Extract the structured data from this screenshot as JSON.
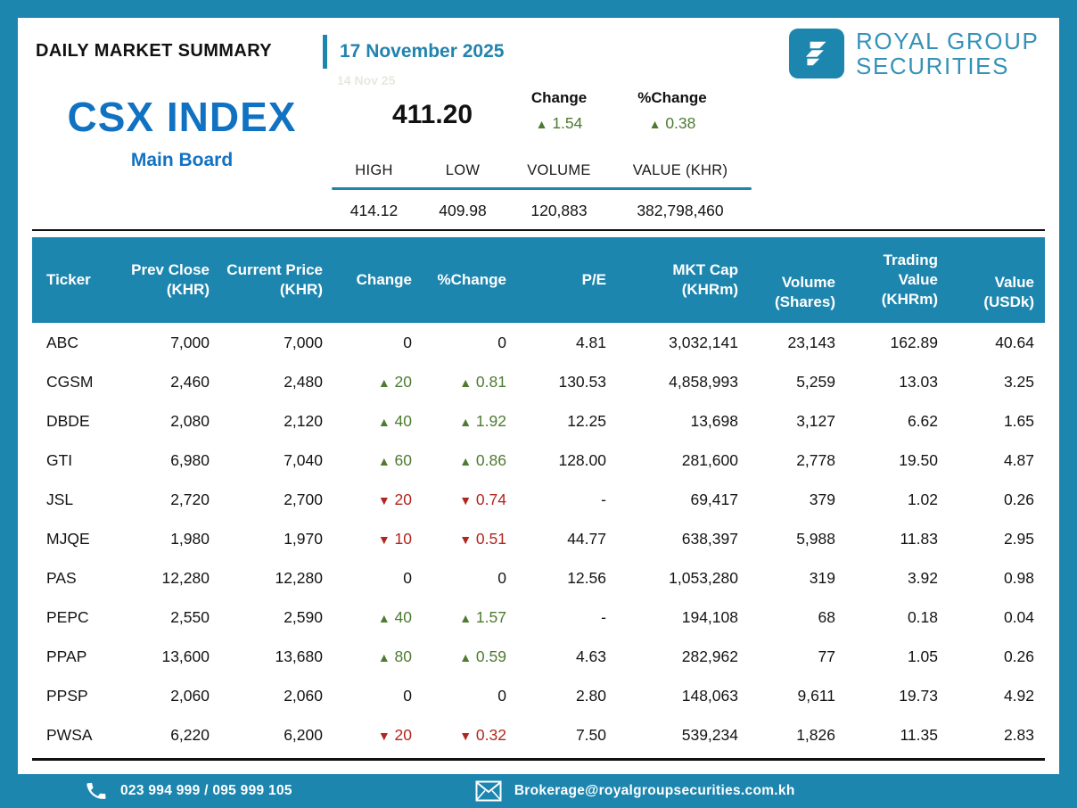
{
  "colors": {
    "teal": "#1d86af",
    "blue": "#1272c2",
    "date_blue": "#2283ae",
    "green": "#4e7a31",
    "red": "#b3241e"
  },
  "header": {
    "title": "DAILY MARKET SUMMARY",
    "date": "17 November 2025",
    "prior_date_watermark": "14 Nov 25"
  },
  "brand": {
    "line1": "ROYAL GROUP",
    "line2": "SECURITIES",
    "logo_icon": "royal-group-monogram"
  },
  "index": {
    "name": "CSX INDEX",
    "board": "Main Board",
    "value": "411.20",
    "change": {
      "label": "Change",
      "value": "1.54",
      "dir": "up"
    },
    "pct_change": {
      "label": "%Change",
      "value": "0.38",
      "dir": "up"
    },
    "stats": {
      "labels": [
        "HIGH",
        "LOW",
        "VOLUME",
        "VALUE (KHR)"
      ],
      "values": [
        "414.12",
        "409.98",
        "120,883",
        "382,798,460"
      ]
    }
  },
  "icons": {
    "up": "▲",
    "down": "▼"
  },
  "table": {
    "columns": [
      {
        "key": "ticker",
        "lines": [
          "Ticker"
        ],
        "align": "left"
      },
      {
        "key": "prev_close",
        "lines": [
          "Prev Close",
          "(KHR)"
        ],
        "align": "right"
      },
      {
        "key": "current_price",
        "lines": [
          "Current Price",
          "(KHR)"
        ],
        "align": "right"
      },
      {
        "key": "change",
        "lines": [
          "Change"
        ],
        "align": "right"
      },
      {
        "key": "pct_change",
        "lines": [
          "%Change"
        ],
        "align": "right"
      },
      {
        "key": "pe",
        "lines": [
          "P/E"
        ],
        "align": "right"
      },
      {
        "key": "mkt_cap",
        "lines": [
          "MKT Cap",
          "(KHRm)"
        ],
        "align": "right"
      },
      {
        "key": "volume",
        "lines": [
          "Volume",
          "(Shares)"
        ],
        "align": "right",
        "valign": "bottom"
      },
      {
        "key": "trading_value",
        "lines": [
          "Trading",
          "Value",
          "(KHRm)"
        ],
        "align": "right"
      },
      {
        "key": "value_usdk",
        "lines": [
          "Value",
          "(USDk)"
        ],
        "align": "right",
        "valign": "bottom"
      }
    ],
    "rows": [
      {
        "ticker": "ABC",
        "prev_close": "7,000",
        "current_price": "7,000",
        "change": "0",
        "pct_change": "0",
        "dir": "flat",
        "pe": "4.81",
        "mkt_cap": "3,032,141",
        "volume": "23,143",
        "trading_value": "162.89",
        "value_usdk": "40.64"
      },
      {
        "ticker": "CGSM",
        "prev_close": "2,460",
        "current_price": "2,480",
        "change": "20",
        "pct_change": "0.81",
        "dir": "up",
        "pe": "130.53",
        "mkt_cap": "4,858,993",
        "volume": "5,259",
        "trading_value": "13.03",
        "value_usdk": "3.25"
      },
      {
        "ticker": "DBDE",
        "prev_close": "2,080",
        "current_price": "2,120",
        "change": "40",
        "pct_change": "1.92",
        "dir": "up",
        "pe": "12.25",
        "mkt_cap": "13,698",
        "volume": "3,127",
        "trading_value": "6.62",
        "value_usdk": "1.65"
      },
      {
        "ticker": "GTI",
        "prev_close": "6,980",
        "current_price": "7,040",
        "change": "60",
        "pct_change": "0.86",
        "dir": "up",
        "pe": "128.00",
        "mkt_cap": "281,600",
        "volume": "2,778",
        "trading_value": "19.50",
        "value_usdk": "4.87"
      },
      {
        "ticker": "JSL",
        "prev_close": "2,720",
        "current_price": "2,700",
        "change": "20",
        "pct_change": "0.74",
        "dir": "down",
        "pe": "-",
        "mkt_cap": "69,417",
        "volume": "379",
        "trading_value": "1.02",
        "value_usdk": "0.26"
      },
      {
        "ticker": "MJQE",
        "prev_close": "1,980",
        "current_price": "1,970",
        "change": "10",
        "pct_change": "0.51",
        "dir": "down",
        "pe": "44.77",
        "mkt_cap": "638,397",
        "volume": "5,988",
        "trading_value": "11.83",
        "value_usdk": "2.95"
      },
      {
        "ticker": "PAS",
        "prev_close": "12,280",
        "current_price": "12,280",
        "change": "0",
        "pct_change": "0",
        "dir": "flat",
        "pe": "12.56",
        "mkt_cap": "1,053,280",
        "volume": "319",
        "trading_value": "3.92",
        "value_usdk": "0.98"
      },
      {
        "ticker": "PEPC",
        "prev_close": "2,550",
        "current_price": "2,590",
        "change": "40",
        "pct_change": "1.57",
        "dir": "up",
        "pe": "-",
        "mkt_cap": "194,108",
        "volume": "68",
        "trading_value": "0.18",
        "value_usdk": "0.04"
      },
      {
        "ticker": "PPAP",
        "prev_close": "13,600",
        "current_price": "13,680",
        "change": "80",
        "pct_change": "0.59",
        "dir": "up",
        "pe": "4.63",
        "mkt_cap": "282,962",
        "volume": "77",
        "trading_value": "1.05",
        "value_usdk": "0.26"
      },
      {
        "ticker": "PPSP",
        "prev_close": "2,060",
        "current_price": "2,060",
        "change": "0",
        "pct_change": "0",
        "dir": "flat",
        "pe": "2.80",
        "mkt_cap": "148,063",
        "volume": "9,611",
        "trading_value": "19.73",
        "value_usdk": "4.92"
      },
      {
        "ticker": "PWSA",
        "prev_close": "6,220",
        "current_price": "6,200",
        "change": "20",
        "pct_change": "0.32",
        "dir": "down",
        "pe": "7.50",
        "mkt_cap": "539,234",
        "volume": "1,826",
        "trading_value": "11.35",
        "value_usdk": "2.83"
      }
    ]
  },
  "footer": {
    "phone": "023 994 999 / 095 999 105",
    "email": "Brokerage@royalgroupsecurities.com.kh"
  }
}
